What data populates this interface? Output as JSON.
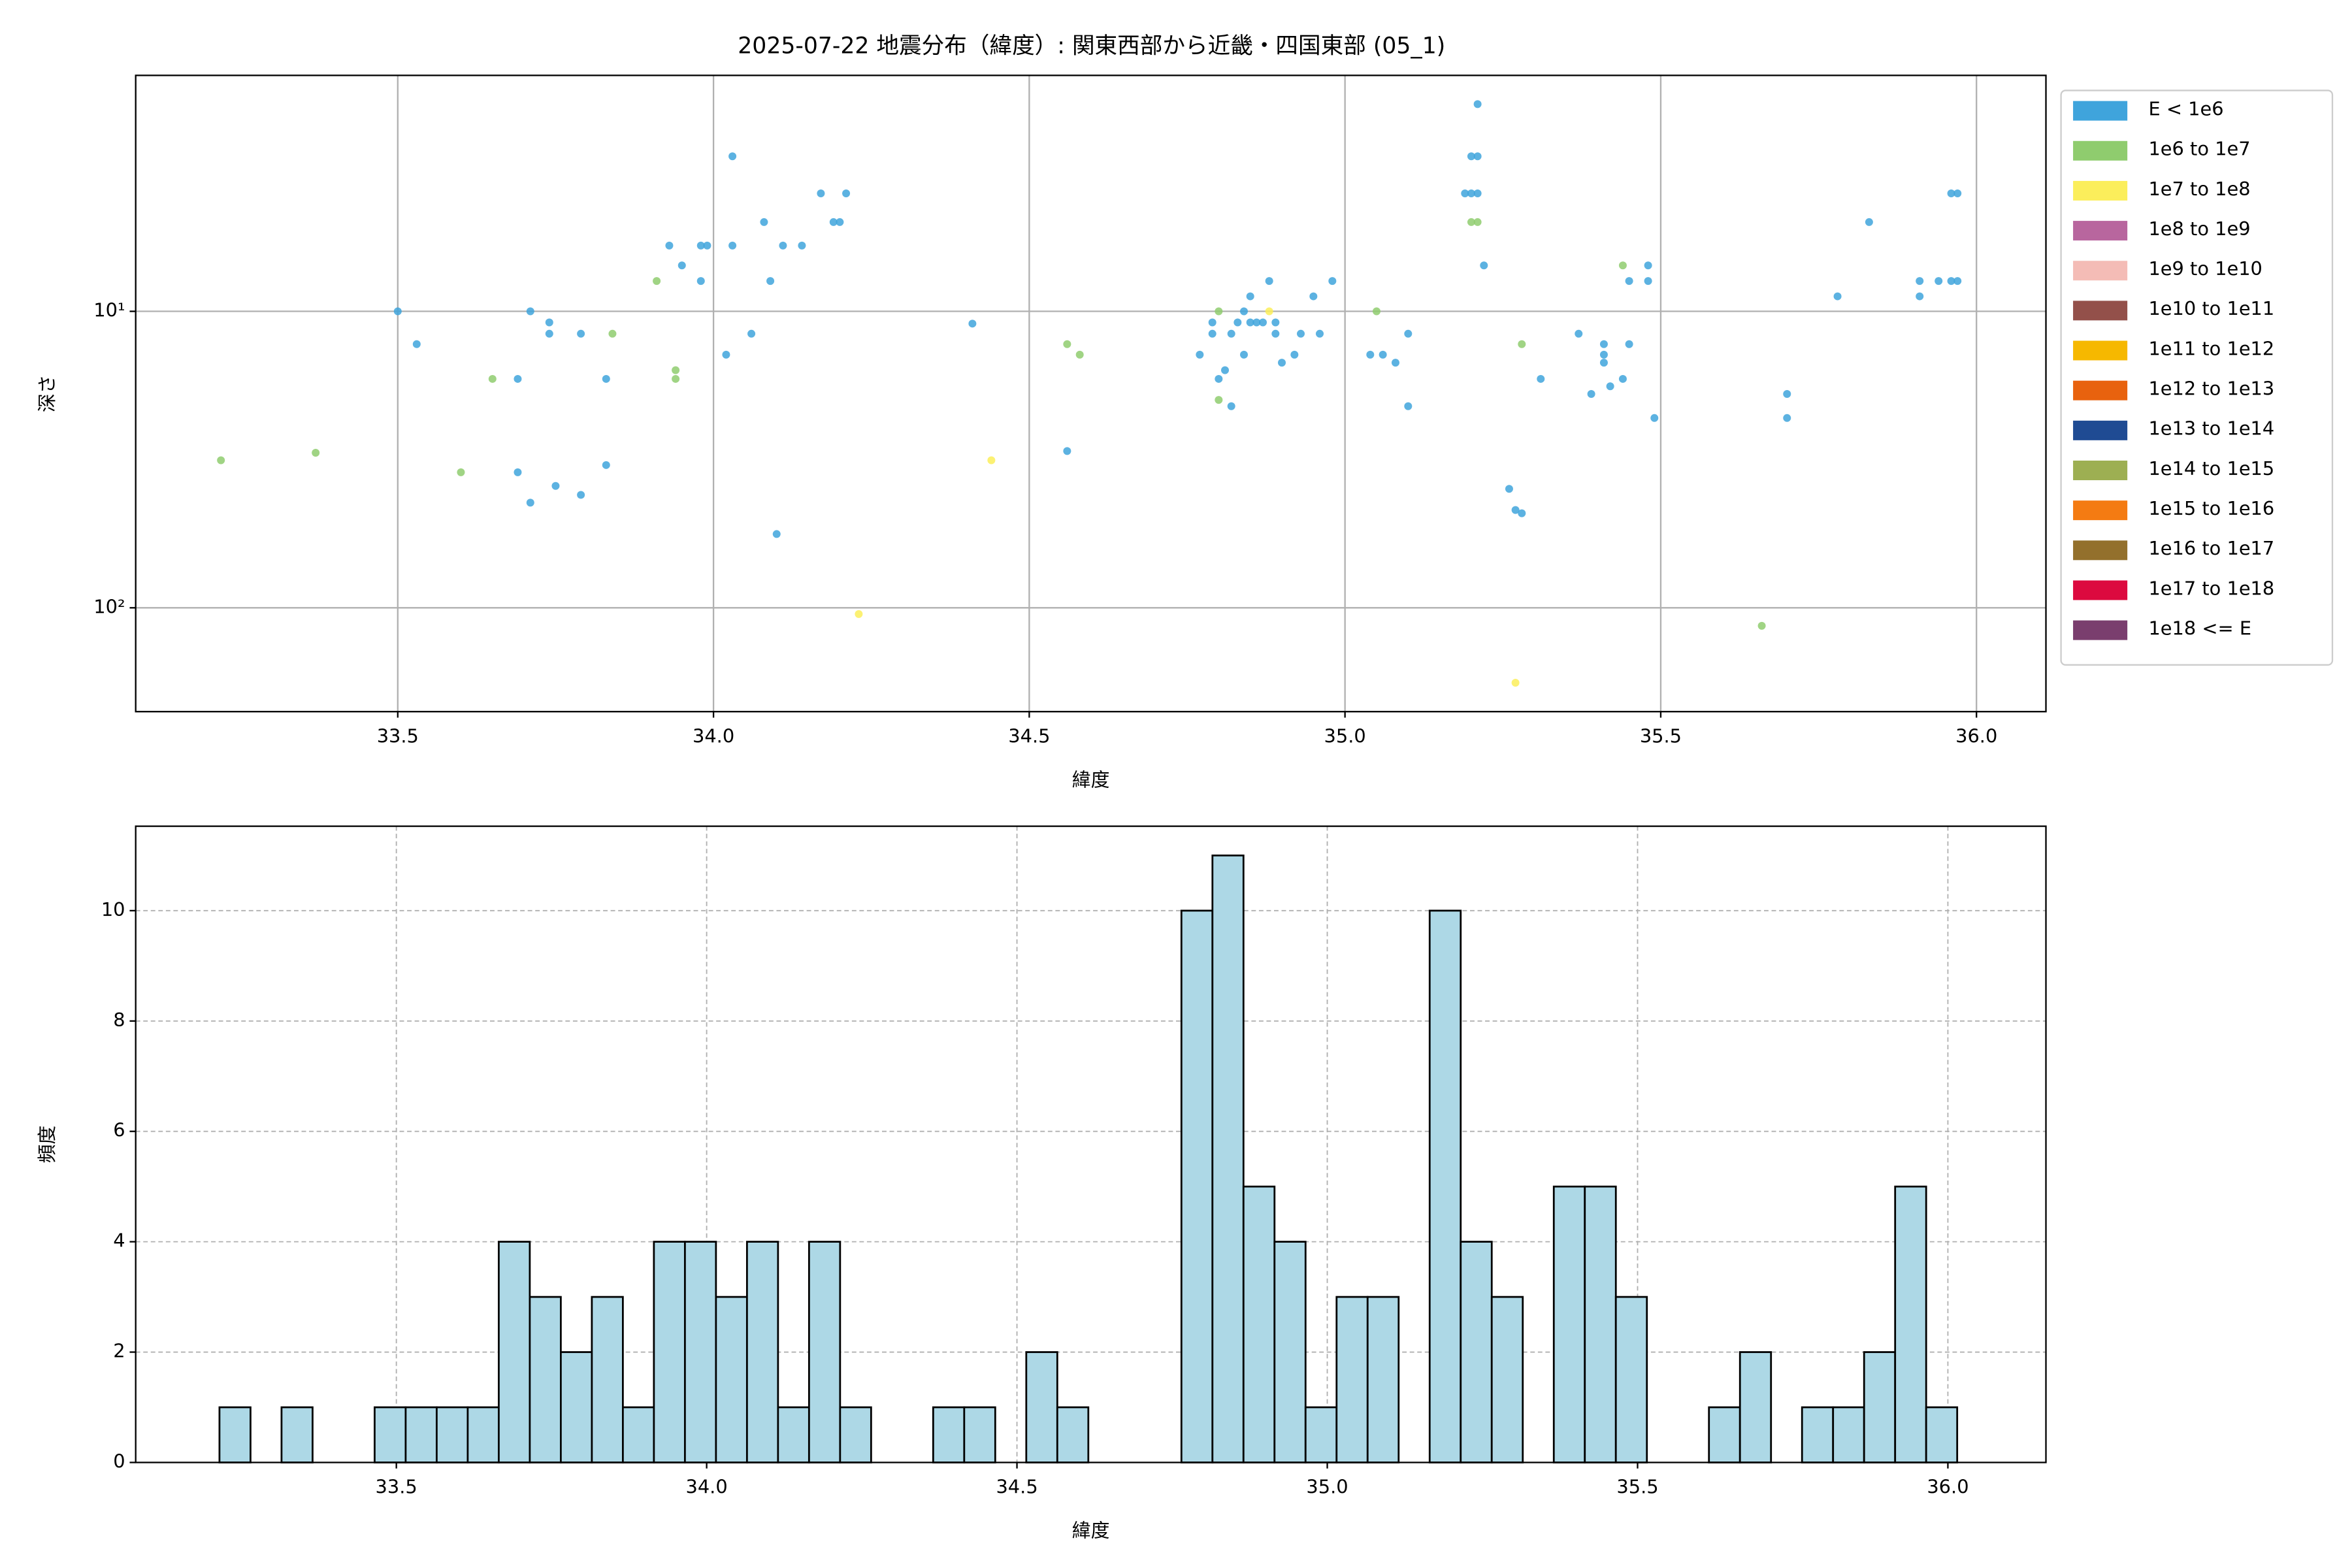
{
  "chart_data": [
    {
      "type": "scatter",
      "title": "2025-07-22 地震分布（緯度）: 関東西部から近畿・四国東部 (05_1)",
      "xlabel": "緯度",
      "ylabel": "深さ",
      "xlim": [
        33.085,
        36.11
      ],
      "ylim": [
        1.6,
        224
      ],
      "ylog": true,
      "yinvert": true,
      "grid": true,
      "legend": "right",
      "xticks": [
        33.5,
        {
          "value": 34.0,
          "label": "34.0"
        },
        34.5,
        {
          "value": 35.0,
          "label": "35.0"
        },
        35.5,
        {
          "value": 36.0,
          "label": "36.0"
        }
      ],
      "yticks": [
        {
          "value": 10,
          "label": "10¹"
        },
        {
          "value": 100,
          "label": "10²"
        }
      ],
      "series": [
        {
          "name": "E < 1e6",
          "color": "#3fa4dc",
          "x": [
            33.5,
            33.53,
            33.71,
            33.74,
            33.74,
            33.79,
            33.69,
            33.83,
            33.69,
            33.75,
            33.71,
            33.79,
            33.83,
            33.93,
            33.95,
            33.98,
            33.99,
            33.98,
            34.03,
            34.03,
            34.02,
            34.06,
            34.08,
            34.09,
            34.11,
            34.14,
            34.17,
            34.19,
            34.2,
            34.21,
            34.1,
            34.41,
            34.56,
            34.77,
            34.79,
            34.79,
            34.8,
            34.81,
            34.82,
            34.82,
            34.83,
            34.84,
            34.84,
            34.85,
            34.85,
            34.86,
            34.87,
            34.88,
            34.89,
            34.89,
            34.9,
            34.92,
            34.93,
            34.95,
            34.96,
            34.98,
            35.04,
            35.06,
            35.08,
            35.1,
            35.1,
            35.21,
            35.2,
            35.21,
            35.19,
            35.2,
            35.21,
            35.22,
            35.26,
            35.27,
            35.28,
            35.31,
            35.37,
            35.39,
            35.41,
            35.41,
            35.41,
            35.42,
            35.44,
            35.45,
            35.45,
            35.48,
            35.48,
            35.49,
            35.7,
            35.7,
            35.78,
            35.83,
            35.91,
            35.91,
            35.94,
            35.96,
            35.97,
            35.96,
            35.97
          ],
          "values": [
            10,
            12.9,
            10,
            10.9,
            11.9,
            11.9,
            16.9,
            16.9,
            34.9,
            38.8,
            44.2,
            41.6,
            33.0,
            6.0,
            7.0,
            6.0,
            6.0,
            7.9,
            3.0,
            6.0,
            14.0,
            11.9,
            5.0,
            7.9,
            6.0,
            6.0,
            4.0,
            5.0,
            5.0,
            4.0,
            56.4,
            11.0,
            29.6,
            14.0,
            10.9,
            11.9,
            16.9,
            15.8,
            20.9,
            11.9,
            10.9,
            14.0,
            10,
            10.9,
            8.9,
            10.9,
            10.9,
            7.9,
            11.9,
            10.9,
            14.9,
            14.0,
            11.9,
            8.9,
            11.9,
            7.9,
            14.0,
            14.0,
            14.9,
            11.9,
            20.9,
            2.0,
            3.0,
            3.0,
            4.0,
            4.0,
            4.0,
            7.0,
            39.7,
            46.8,
            48,
            16.9,
            11.9,
            19.0,
            14.0,
            14.9,
            12.9,
            17.9,
            16.9,
            12.9,
            7.9,
            7.0,
            7.9,
            22.9,
            19.0,
            22.9,
            8.9,
            5.0,
            7.9,
            8.9,
            7.9,
            4.0,
            4.0,
            7.9,
            7.9
          ]
        },
        {
          "name": "1e6 to 1e7",
          "color": "#8fcc6e",
          "x": [
            33.22,
            33.37,
            33.6,
            33.65,
            33.91,
            33.84,
            33.94,
            33.94,
            34.56,
            34.58,
            34.8,
            34.8,
            35.2,
            35.21,
            35.05,
            35.28,
            35.44,
            35.66
          ],
          "values": [
            31.8,
            30.0,
            34.9,
            16.9,
            7.9,
            11.9,
            15.8,
            16.9,
            12.9,
            14.0,
            10,
            19.9,
            5.0,
            5.0,
            10,
            12.9,
            7.0,
            115
          ]
        },
        {
          "name": "1e7 to 1e8",
          "color": "#fbee5b",
          "x": [
            34.44,
            34.23,
            34.88,
            35.27
          ],
          "values": [
            31.8,
            105,
            10,
            179
          ]
        },
        {
          "name": "1e8 to 1e9",
          "color": "#b8669e",
          "x": [],
          "values": []
        },
        {
          "name": "1e9 to 1e10",
          "color": "#f4bcb6",
          "x": [],
          "values": []
        },
        {
          "name": "1e10 to 1e11",
          "color": "#93504a",
          "x": [],
          "values": []
        },
        {
          "name": "1e11 to 1e12",
          "color": "#f6b800",
          "x": [],
          "values": []
        },
        {
          "name": "1e12 to 1e13",
          "color": "#e8620e",
          "x": [],
          "values": []
        },
        {
          "name": "1e13 to 1e14",
          "color": "#1f4b93",
          "x": [],
          "values": []
        },
        {
          "name": "1e14 to 1e15",
          "color": "#9daf52",
          "x": [],
          "values": []
        },
        {
          "name": "1e15 to 1e16",
          "color": "#f47b12",
          "x": [],
          "values": []
        },
        {
          "name": "1e16 to 1e17",
          "color": "#93702c",
          "x": [],
          "values": []
        },
        {
          "name": "1e17 to 1e18",
          "color": "#dc0a3f",
          "x": [],
          "values": []
        },
        {
          "name": "1e18 <= E",
          "color": "#7a3e6e",
          "x": [],
          "values": []
        }
      ]
    },
    {
      "type": "histogram",
      "xlabel": "緯度",
      "ylabel": "頻度",
      "color": "#add8e6",
      "edgecolor": "#000000",
      "grid": true,
      "xlim": [
        33.08,
        36.158
      ],
      "ylim": [
        0,
        11.53
      ],
      "xticks": [
        33.5,
        {
          "value": 34.0,
          "label": "34.0"
        },
        34.5,
        {
          "value": 35.0,
          "label": "35.0"
        },
        35.5,
        {
          "value": 36.0,
          "label": "36.0"
        }
      ],
      "yticks": [
        0,
        2,
        4,
        6,
        8,
        10
      ],
      "bins": [
        33.215,
        33.265,
        33.315,
        33.365,
        33.415,
        33.465,
        33.515,
        33.565,
        33.615,
        33.665,
        33.715,
        33.765,
        33.815,
        33.865,
        33.915,
        33.965,
        34.015,
        34.065,
        34.115,
        34.165,
        34.215,
        34.265,
        34.315,
        34.365,
        34.415,
        34.465,
        34.515,
        34.565,
        34.615,
        34.665,
        34.715,
        34.765,
        34.815,
        34.865,
        34.915,
        34.965,
        35.015,
        35.065,
        35.115,
        35.165,
        35.215,
        35.265,
        35.315,
        35.365,
        35.415,
        35.465,
        35.515,
        35.565,
        35.615,
        35.665,
        35.715,
        35.765,
        35.815,
        35.865,
        35.915,
        35.965,
        36.015
      ],
      "values": [
        1,
        0,
        1,
        0,
        0,
        1,
        1,
        1,
        1,
        4,
        3,
        2,
        3,
        1,
        4,
        4,
        3,
        4,
        1,
        4,
        1,
        0,
        0,
        1,
        1,
        0,
        2,
        1,
        0,
        0,
        0,
        10,
        11,
        5,
        4,
        1,
        3,
        3,
        0,
        10,
        4,
        3,
        0,
        5,
        5,
        3,
        0,
        0,
        1,
        2,
        0,
        1,
        1,
        2,
        5,
        1
      ]
    }
  ]
}
